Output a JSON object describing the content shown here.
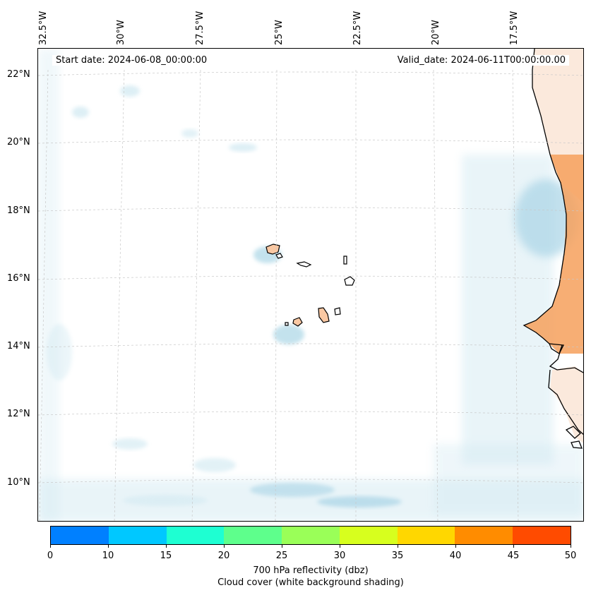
{
  "map": {
    "start_date": "Start date: 2024-06-08_00:00:00",
    "valid_date": "Valid_date: 2024-06-11T00:00:00.00",
    "lon_labels": [
      "32.5°W",
      "30°W",
      "27.5°W",
      "25°W",
      "22.5°W",
      "20°W",
      "17.5°W"
    ],
    "lat_labels": [
      "22°N",
      "20°N",
      "18°N",
      "16°N",
      "14°N",
      "12°N",
      "10°N"
    ],
    "colors": {
      "land_fill": "#f6a05c",
      "cloud": "#cfe8f1",
      "coastline": "#000000",
      "gridline": "#cccccc"
    }
  },
  "colorbar": {
    "ticks": [
      "0",
      "10",
      "15",
      "20",
      "25",
      "30",
      "35",
      "40",
      "45",
      "50"
    ],
    "colors": [
      "#0080ff",
      "#00c8ff",
      "#1effd2",
      "#5eff8c",
      "#9aff58",
      "#d7ff1e",
      "#ffd700",
      "#ff8c00",
      "#ff4b00"
    ],
    "label_line1": "700 hPa reflectivity (dbz)",
    "label_line2": "Cloud cover (white background shading)"
  }
}
